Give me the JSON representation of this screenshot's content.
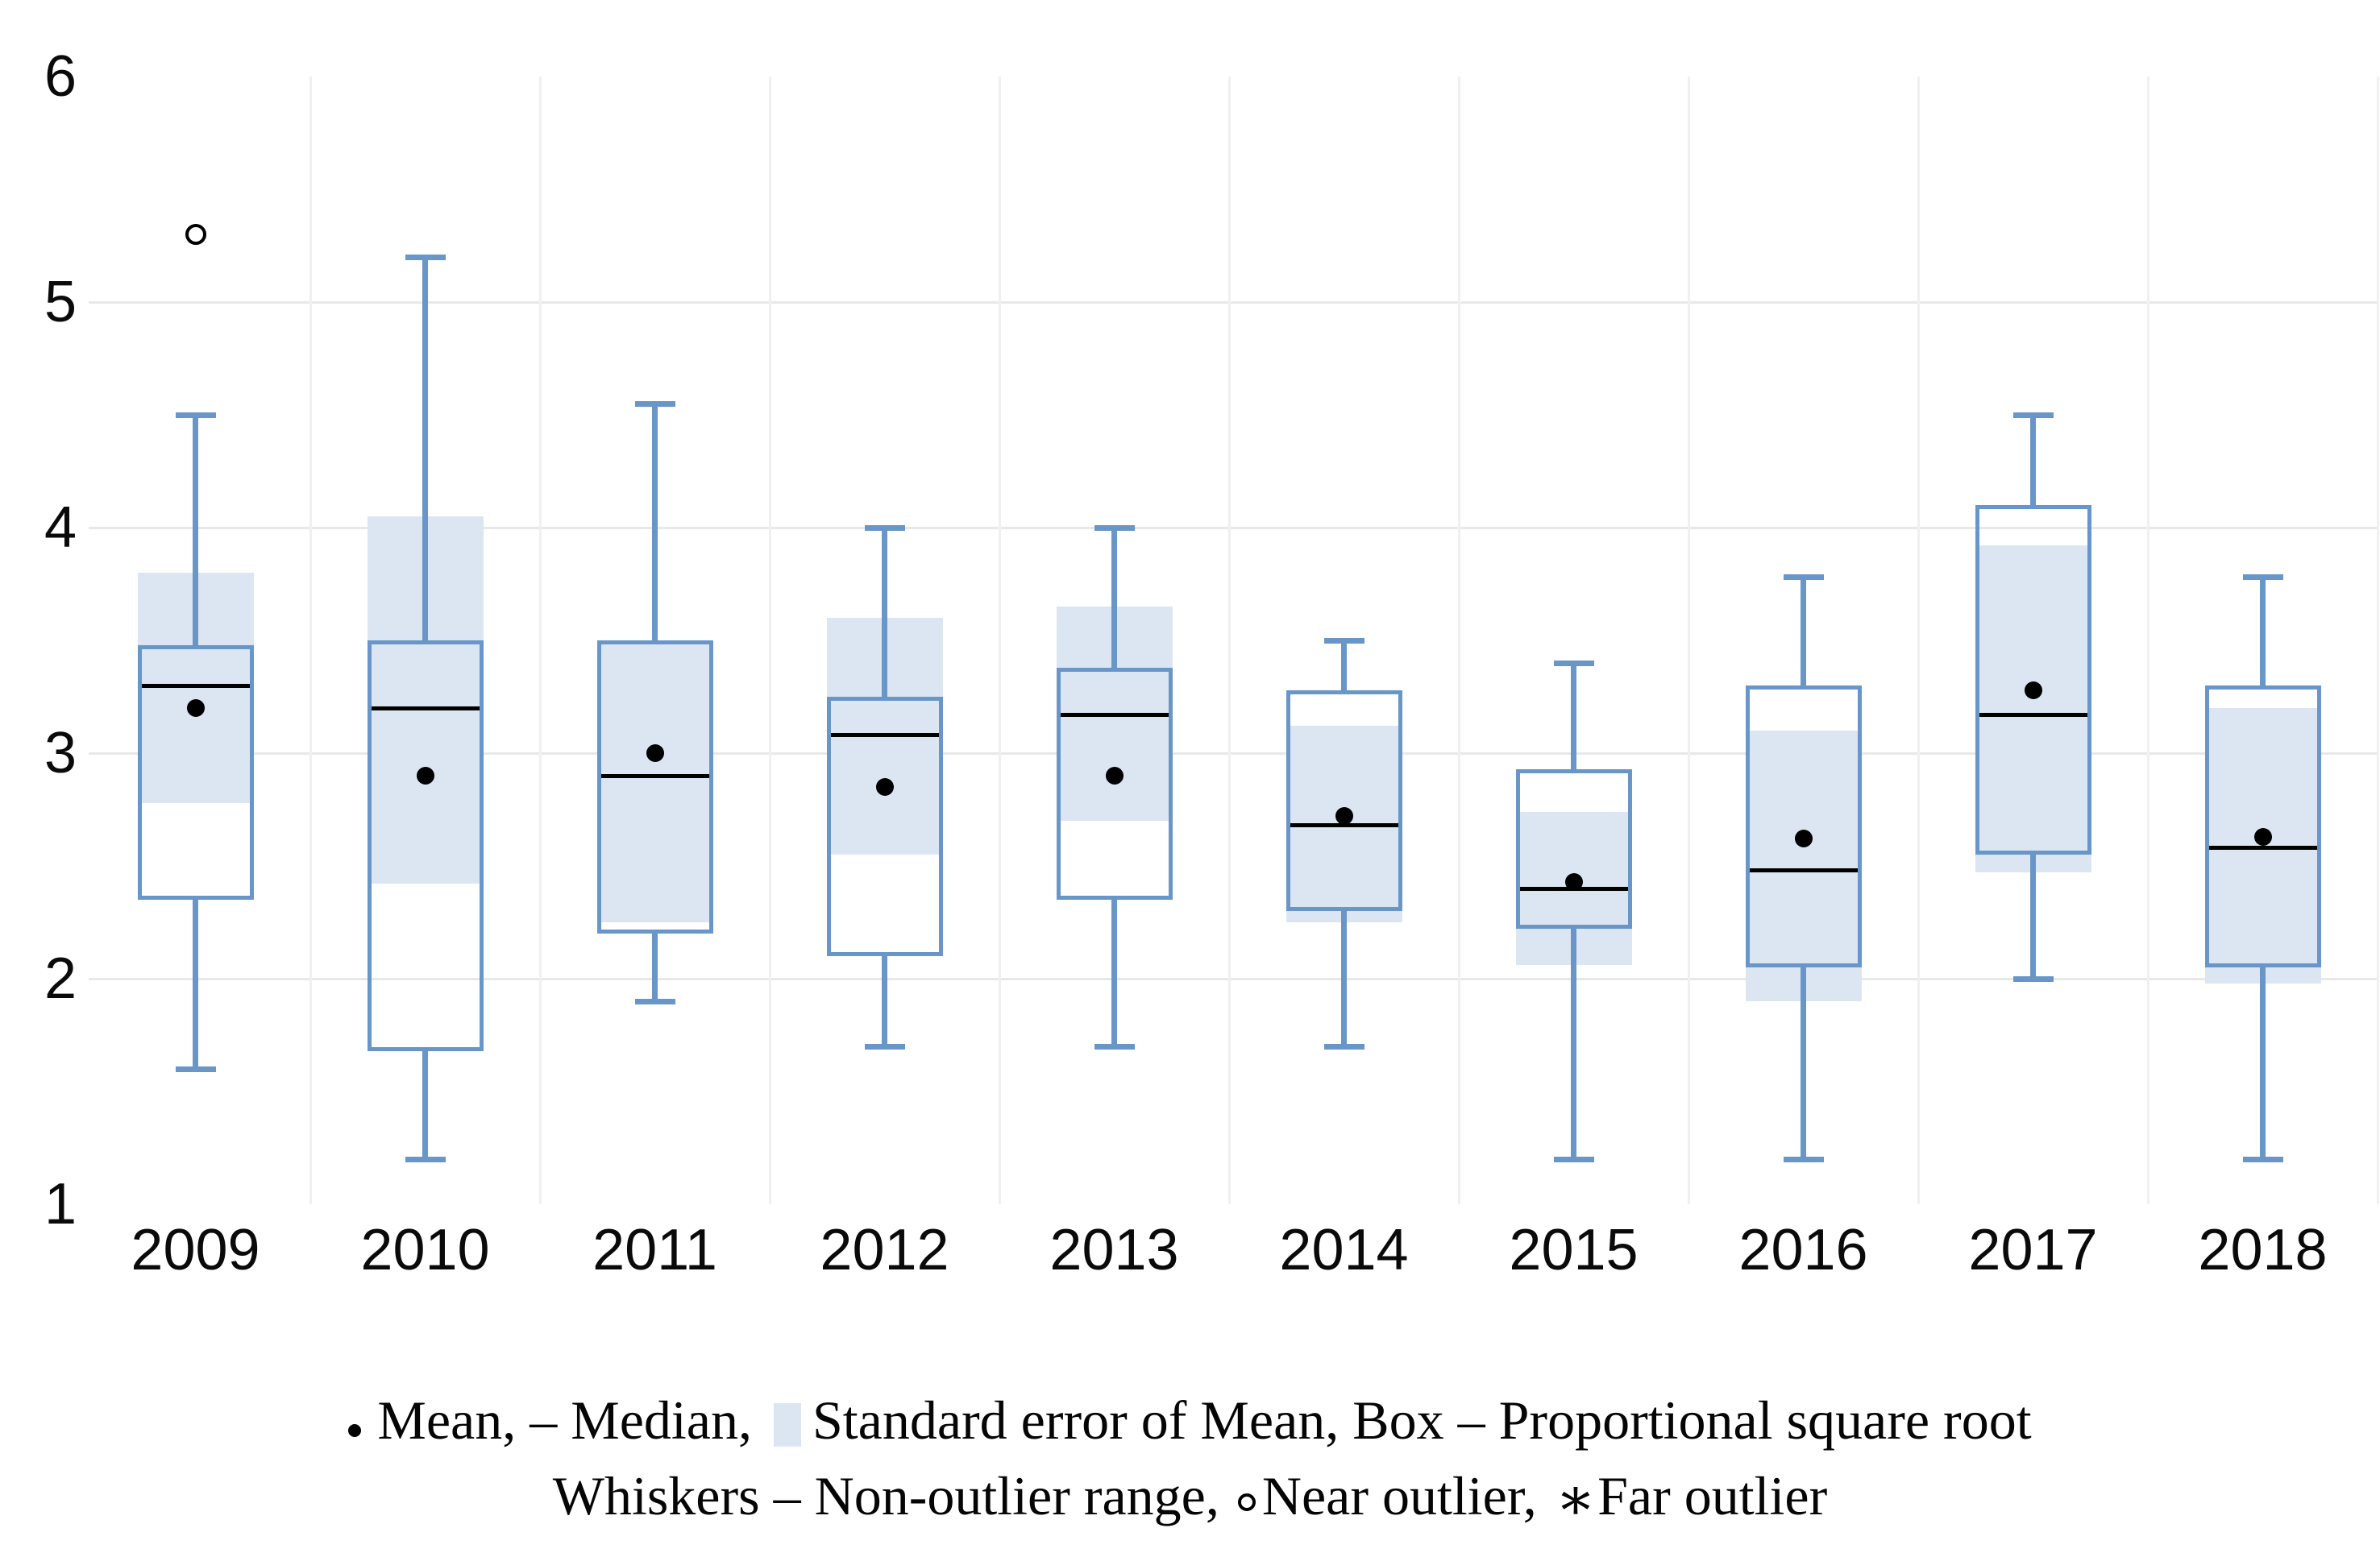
{
  "page": {
    "background": "#ffffff"
  },
  "colors": {
    "box_border": "#6996c8",
    "whisker": "#6996c8",
    "se_fill": "#dce6f2",
    "grid_horizontal": "#e8e8e8",
    "grid_vertical": "#f0f0f0",
    "marker_black": "#000000",
    "text": "#0a0a0a"
  },
  "glyphs": {
    "near_outlier": "○",
    "far_outlier": "∗",
    "mean_marker": "filled-dot",
    "se_marker": "light-blue-square"
  },
  "chart_data": {
    "type": "boxplot",
    "variant": "error-plot with standard-error band, proportional square-root box",
    "title": "",
    "xlabel": "",
    "ylabel": "",
    "ylim": [
      1,
      6
    ],
    "yticks": [
      "6",
      "5",
      "4",
      "3",
      "2",
      "1"
    ],
    "ytick_values": [
      6,
      5,
      4,
      3,
      2,
      1
    ],
    "grid": {
      "horizontal_at": [
        5,
        4,
        3,
        2
      ],
      "vertical": "column-boundaries",
      "legend_position": "bottom"
    },
    "categories": [
      "2009",
      "2010",
      "2011",
      "2012",
      "2013",
      "2014",
      "2015",
      "2016",
      "2017",
      "2018"
    ],
    "series": [
      {
        "category": "2009",
        "whisker_low": 1.6,
        "whisker_high": 4.5,
        "box_low": 2.35,
        "box_high": 3.48,
        "se_low": 2.78,
        "se_high": 3.8,
        "median": 3.3,
        "mean": 3.2,
        "outliers_near": [
          5.3
        ],
        "outliers_far": []
      },
      {
        "category": "2010",
        "whisker_low": 1.2,
        "whisker_high": 5.2,
        "box_low": 1.68,
        "box_high": 3.5,
        "se_low": 2.42,
        "se_high": 4.05,
        "median": 3.2,
        "mean": 2.9,
        "outliers_near": [],
        "outliers_far": []
      },
      {
        "category": "2011",
        "whisker_low": 1.9,
        "whisker_high": 4.55,
        "box_low": 2.2,
        "box_high": 3.5,
        "se_low": 2.25,
        "se_high": 3.5,
        "median": 2.9,
        "mean": 3.0,
        "outliers_near": [],
        "outliers_far": []
      },
      {
        "category": "2012",
        "whisker_low": 1.7,
        "whisker_high": 4.0,
        "box_low": 2.1,
        "box_high": 3.25,
        "se_low": 2.55,
        "se_high": 3.6,
        "median": 3.08,
        "mean": 2.85,
        "outliers_near": [],
        "outliers_far": []
      },
      {
        "category": "2013",
        "whisker_low": 1.7,
        "whisker_high": 4.0,
        "box_low": 2.35,
        "box_high": 3.38,
        "se_low": 2.7,
        "se_high": 3.65,
        "median": 3.17,
        "mean": 2.9,
        "outliers_near": [],
        "outliers_far": []
      },
      {
        "category": "2014",
        "whisker_low": 1.7,
        "whisker_high": 3.5,
        "box_low": 2.3,
        "box_high": 3.28,
        "se_low": 2.25,
        "se_high": 3.12,
        "median": 2.68,
        "mean": 2.72,
        "outliers_near": [],
        "outliers_far": []
      },
      {
        "category": "2015",
        "whisker_low": 1.2,
        "whisker_high": 3.4,
        "box_low": 2.22,
        "box_high": 2.93,
        "se_low": 2.06,
        "se_high": 2.74,
        "median": 2.4,
        "mean": 2.43,
        "outliers_near": [],
        "outliers_far": []
      },
      {
        "category": "2016",
        "whisker_low": 1.2,
        "whisker_high": 3.78,
        "box_low": 2.05,
        "box_high": 3.3,
        "se_low": 1.9,
        "se_high": 3.1,
        "median": 2.48,
        "mean": 2.62,
        "outliers_near": [],
        "outliers_far": []
      },
      {
        "category": "2017",
        "whisker_low": 2.0,
        "whisker_high": 4.5,
        "box_low": 2.55,
        "box_high": 4.1,
        "se_low": 2.47,
        "se_high": 3.92,
        "median": 3.17,
        "mean": 3.28,
        "outliers_near": [],
        "outliers_far": []
      },
      {
        "category": "2018",
        "whisker_low": 1.2,
        "whisker_high": 3.78,
        "box_low": 2.05,
        "box_high": 3.3,
        "se_low": 1.98,
        "se_high": 3.2,
        "median": 2.58,
        "mean": 2.63,
        "outliers_near": [],
        "outliers_far": []
      }
    ],
    "legend": {
      "line1": [
        {
          "marker": "mean-dot"
        },
        {
          "text": "Mean, – Median, "
        },
        {
          "marker": "se-swatch"
        },
        {
          "text": "Standard error of Mean, Box – Proportional square root"
        }
      ],
      "line2": [
        {
          "text": "Whiskers – Non-outlier range, "
        },
        {
          "marker": "near-circle"
        },
        {
          "text": "Near outlier, "
        },
        {
          "marker": "far-asterisk"
        },
        {
          "text": "Far outlier"
        }
      ],
      "line1_plain": "• Mean, – Median, ▪ Standard error of Mean, Box – Proportional square root",
      "line2_plain": "Whiskers – Non-outlier range, ○ Near outlier, ∗ Far outlier"
    }
  }
}
